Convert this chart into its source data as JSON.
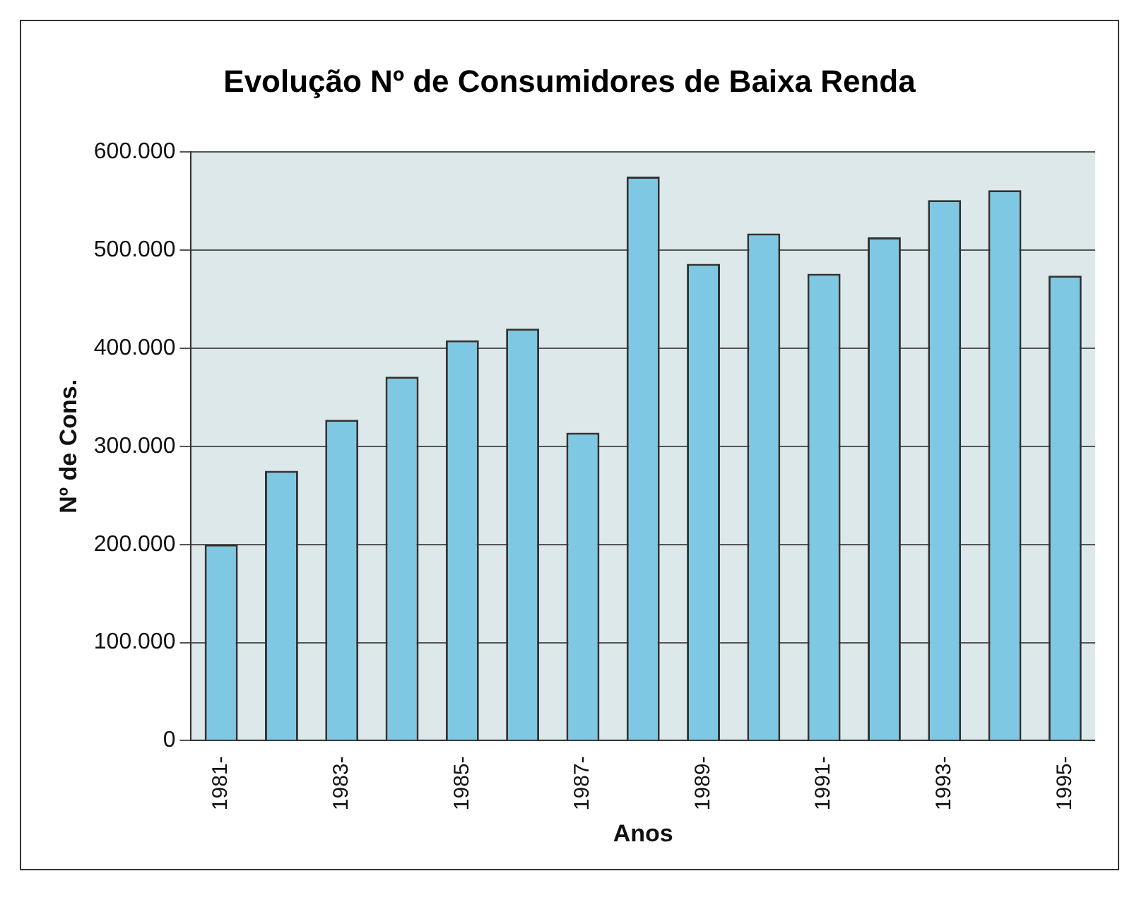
{
  "chart_data": {
    "type": "bar",
    "title": "Evolução Nº de Consumidores de Baixa Renda",
    "xlabel": "Anos",
    "ylabel": "Nº de Cons.",
    "categories": [
      "1981-",
      null,
      "1983-",
      null,
      "1985-",
      null,
      "1987-",
      null,
      "1989-",
      null,
      "1991-",
      null,
      "1993-",
      null,
      "1995-"
    ],
    "values": [
      200000,
      275000,
      327000,
      371000,
      408000,
      420000,
      314000,
      575000,
      486000,
      517000,
      476000,
      513000,
      551000,
      561000,
      474000
    ],
    "color": "#7ec8e3",
    "ylim": [
      0,
      600000
    ],
    "yticks": [
      {
        "value": 0,
        "label": "0"
      },
      {
        "value": 100000,
        "label": "100.000"
      },
      {
        "value": 200000,
        "label": "200.000"
      },
      {
        "value": 300000,
        "label": "300.000"
      },
      {
        "value": 400000,
        "label": "400.000"
      },
      {
        "value": 500000,
        "label": "500.000"
      },
      {
        "value": 600000,
        "label": "600.000"
      }
    ],
    "grid": "y",
    "legend": false
  }
}
